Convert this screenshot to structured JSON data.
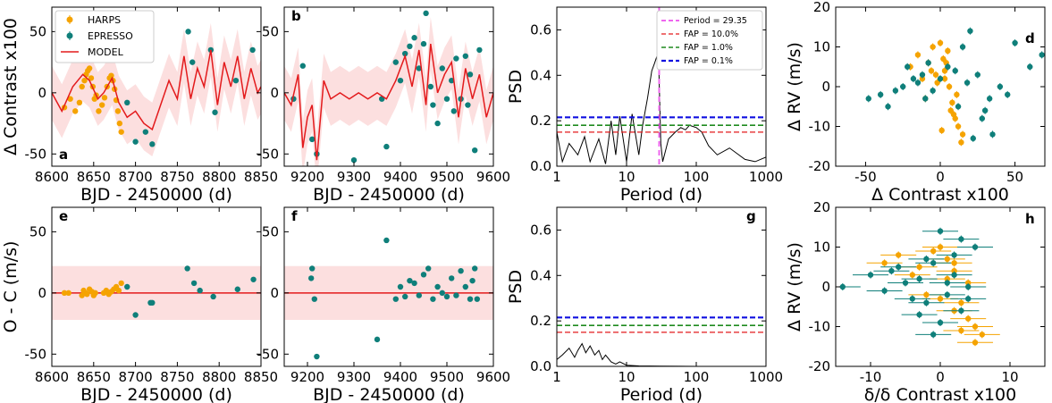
{
  "colors": {
    "harps": "#f5a300",
    "espresso": "#0f7f7a",
    "model": "#e31a1c",
    "band": "#fcd9d9",
    "period_line": "#ee66ee",
    "fap10": "#e31a1c",
    "fap1": "#1f8a1f",
    "fap01": "#1010e0"
  },
  "chart_data": [
    {
      "panel": "a",
      "type": "scatter",
      "xlabel": "BJD - 2450000 (d)",
      "ylabel": "Δ Contrast x100",
      "xlim": [
        8600,
        8850
      ],
      "ylim": [
        -60,
        70
      ],
      "xticks": [
        8600,
        8650,
        8700,
        8750,
        8800,
        8850
      ],
      "yticks": [
        -50,
        0,
        50
      ],
      "legend": {
        "placement": "top-left",
        "entries": [
          "HARPS",
          "EPRESSO",
          "MODEL"
        ]
      },
      "series": [
        {
          "name": "HARPS",
          "x": [
            8615,
            8622,
            8628,
            8633,
            8636,
            8639,
            8641,
            8643,
            8645,
            8647,
            8649,
            8651,
            8653,
            8656,
            8660,
            8663,
            8666,
            8669,
            8671,
            8673,
            8675,
            8677,
            8679,
            8681,
            8683
          ],
          "y": [
            -12,
            -5,
            -15,
            -8,
            5,
            10,
            15,
            18,
            20,
            12,
            5,
            -5,
            -2,
            -15,
            -10,
            -4,
            5,
            12,
            14,
            10,
            3,
            -6,
            -15,
            -25,
            -32
          ]
        },
        {
          "name": "EPRESSO",
          "x": [
            8690,
            8700,
            8712,
            8720,
            8763,
            8768,
            8790,
            8795,
            8820,
            8840
          ],
          "y": [
            -8,
            -40,
            -32,
            -42,
            50,
            25,
            35,
            -16,
            10,
            35
          ]
        },
        {
          "name": "MODEL",
          "x": [
            8600,
            8612,
            8625,
            8637,
            8645,
            8655,
            8662,
            8672,
            8680,
            8690,
            8700,
            8710,
            8720,
            8730,
            8740,
            8750,
            8758,
            8766,
            8774,
            8782,
            8790,
            8798,
            8806,
            8814,
            8822,
            8830,
            8838,
            8846,
            8850
          ],
          "y": [
            0,
            -15,
            5,
            15,
            10,
            -5,
            0,
            12,
            -8,
            -20,
            -15,
            -25,
            -30,
            -10,
            10,
            -5,
            30,
            -5,
            20,
            5,
            35,
            -10,
            25,
            5,
            30,
            -5,
            20,
            0,
            5
          ]
        }
      ]
    },
    {
      "panel": "b",
      "type": "scatter",
      "xlabel": "BJD - 2450000 (d)",
      "ylabel": "",
      "xlim": [
        9150,
        9600
      ],
      "ylim": [
        -60,
        70
      ],
      "xticks": [
        9200,
        9300,
        9400,
        9500,
        9600
      ],
      "yticks": [
        -50,
        0,
        50
      ],
      "series": [
        {
          "name": "EPRESSO",
          "x": [
            9170,
            9190,
            9210,
            9220,
            9300,
            9360,
            9370,
            9390,
            9400,
            9410,
            9420,
            9430,
            9440,
            9450,
            9455,
            9460,
            9465,
            9470,
            9480,
            9490,
            9500,
            9510,
            9515,
            9520,
            9530,
            9540,
            9545,
            9550,
            9560,
            9570
          ],
          "y": [
            -5,
            22,
            -38,
            -50,
            -55,
            -5,
            -44,
            25,
            10,
            32,
            38,
            45,
            20,
            40,
            65,
            75,
            5,
            -10,
            -25,
            20,
            -5,
            10,
            -15,
            28,
            -5,
            30,
            -10,
            15,
            -47,
            35
          ]
        },
        {
          "name": "MODEL",
          "x": [
            9150,
            9165,
            9180,
            9190,
            9200,
            9210,
            9220,
            9235,
            9250,
            9270,
            9290,
            9310,
            9330,
            9350,
            9370,
            9390,
            9410,
            9425,
            9440,
            9455,
            9465,
            9480,
            9495,
            9510,
            9525,
            9540,
            9555,
            9570,
            9585,
            9600
          ],
          "y": [
            0,
            -10,
            15,
            -45,
            -20,
            -10,
            -55,
            10,
            -5,
            0,
            -5,
            0,
            -5,
            0,
            -5,
            10,
            30,
            5,
            35,
            -10,
            40,
            0,
            15,
            25,
            -20,
            20,
            -5,
            15,
            -20,
            0
          ]
        }
      ]
    },
    {
      "panel": "c",
      "type": "line",
      "xlabel": "Period (d)",
      "ylabel": "PSD",
      "xscale": "log",
      "xlim": [
        1,
        1000
      ],
      "ylim": [
        0,
        0.7
      ],
      "xticks": [
        1,
        10,
        100,
        1000
      ],
      "yticks": [
        0.0,
        0.2,
        0.4,
        0.6
      ],
      "legend": {
        "placement": "top-right",
        "entries": [
          "Period = 29.35",
          "FAP = 10.0%",
          "FAP =  1.0%",
          "FAP =  0.1%"
        ]
      },
      "period_marker": 29.35,
      "fap_levels": [
        {
          "label": "FAP = 10.0%",
          "value": 0.15
        },
        {
          "label": "FAP =  1.0%",
          "value": 0.18
        },
        {
          "label": "FAP =  0.1%",
          "value": 0.215
        }
      ],
      "x": [
        1,
        1.2,
        1.5,
        2,
        2.5,
        3,
        4,
        5,
        6,
        7,
        8,
        10,
        12,
        15,
        17,
        20,
        23,
        25,
        27,
        29,
        31,
        33,
        35,
        40,
        50,
        60,
        70,
        80,
        100,
        120,
        150,
        200,
        300,
        500,
        700,
        1000
      ],
      "y": [
        0.15,
        0.02,
        0.1,
        0.05,
        0.13,
        0.02,
        0.12,
        0.01,
        0.2,
        0.05,
        0.22,
        0.02,
        0.23,
        0.05,
        0.18,
        0.3,
        0.42,
        0.45,
        0.48,
        0.44,
        0.1,
        0.02,
        0.05,
        0.12,
        0.15,
        0.17,
        0.16,
        0.18,
        0.17,
        0.15,
        0.09,
        0.05,
        0.08,
        0.03,
        0.02,
        0.04
      ]
    },
    {
      "panel": "d",
      "type": "scatter",
      "xlabel": "Δ Contrast x100",
      "ylabel": "Δ RV (m/s)",
      "xlim": [
        -70,
        70
      ],
      "ylim": [
        -20,
        20
      ],
      "xticks": [
        -50,
        0,
        50
      ],
      "yticks": [
        -20,
        -10,
        0,
        10,
        20
      ],
      "series": [
        {
          "name": "HARPS",
          "x": [
            -20,
            -15,
            -12,
            -10,
            -8,
            -5,
            -3,
            0,
            2,
            3,
            5,
            6,
            8,
            10,
            12,
            15,
            -2,
            4,
            7,
            1,
            -6,
            9,
            11,
            14,
            3
          ],
          "y": [
            5,
            8,
            2,
            -3,
            6,
            10,
            3,
            11,
            7,
            4,
            9,
            0,
            -4,
            -8,
            -10,
            -12,
            1,
            6,
            -6,
            -11,
            4,
            -7,
            -2,
            -14,
            2
          ]
        },
        {
          "name": "EPRESSO",
          "x": [
            -48,
            -40,
            -35,
            -30,
            -25,
            -22,
            -18,
            -15,
            -12,
            -10,
            -5,
            0,
            5,
            10,
            15,
            20,
            25,
            30,
            35,
            40,
            45,
            50,
            60,
            68,
            22,
            28,
            -8,
            12,
            18,
            33
          ],
          "y": [
            -3,
            -2,
            -5,
            -1,
            0,
            5,
            2,
            1,
            3,
            -3,
            -1,
            2,
            5,
            4,
            10,
            14,
            3,
            -6,
            -12,
            0,
            -2,
            11,
            5,
            8,
            -13,
            -8,
            6,
            -5,
            1,
            -3
          ]
        }
      ]
    },
    {
      "panel": "e",
      "type": "scatter",
      "xlabel": "BJD - 2450000 (d)",
      "ylabel": "O - C (m/s)",
      "xlim": [
        8600,
        8850
      ],
      "ylim": [
        -60,
        70
      ],
      "xticks": [
        8600,
        8650,
        8700,
        8750,
        8800,
        8850
      ],
      "yticks": [
        -50,
        0,
        50
      ],
      "series": [
        {
          "name": "HARPS",
          "x": [
            8615,
            8620,
            8636,
            8638,
            8640,
            8642,
            8645,
            8648,
            8650,
            8652,
            8662,
            8665,
            8668,
            8671,
            8674,
            8677,
            8680,
            8683
          ],
          "y": [
            0,
            0,
            -2,
            2,
            0,
            -1,
            3,
            1,
            -2,
            0,
            0,
            2,
            -1,
            1,
            3,
            5,
            2,
            8
          ]
        },
        {
          "name": "EPRESSO",
          "x": [
            8690,
            8700,
            8718,
            8720,
            8762,
            8770,
            8777,
            8793,
            8822,
            8841
          ],
          "y": [
            5,
            -18,
            -8,
            -8,
            20,
            8,
            2,
            -3,
            3,
            11
          ]
        }
      ]
    },
    {
      "panel": "f",
      "type": "scatter",
      "xlabel": "BJD - 2450000 (d)",
      "ylabel": "",
      "xlim": [
        9150,
        9600
      ],
      "ylim": [
        -60,
        70
      ],
      "xticks": [
        9200,
        9300,
        9400,
        9500,
        9600
      ],
      "yticks": [
        -50,
        0,
        50
      ],
      "series": [
        {
          "name": "EPRESSO",
          "x": [
            9208,
            9210,
            9215,
            9220,
            9350,
            9370,
            9390,
            9400,
            9410,
            9420,
            9430,
            9440,
            9450,
            9460,
            9470,
            9480,
            9490,
            9500,
            9510,
            9520,
            9530,
            9540,
            9550,
            9555,
            9560,
            9565
          ],
          "y": [
            12,
            20,
            -5,
            -52,
            -38,
            43,
            -5,
            5,
            -3,
            10,
            8,
            -2,
            15,
            20,
            -5,
            5,
            0,
            -3,
            12,
            -2,
            18,
            5,
            -5,
            10,
            20,
            -5
          ]
        }
      ]
    },
    {
      "panel": "g",
      "type": "line",
      "xlabel": "Period (d)",
      "ylabel": "PSD",
      "xscale": "log",
      "xlim": [
        1,
        1000
      ],
      "ylim": [
        0,
        0.7
      ],
      "xticks": [
        1,
        10,
        100,
        1000
      ],
      "yticks": [
        0.0,
        0.2,
        0.4,
        0.6
      ],
      "fap_levels": [
        {
          "label": "FAP = 10.0%",
          "value": 0.15
        },
        {
          "label": "FAP =  1.0%",
          "value": 0.18
        },
        {
          "label": "FAP =  0.1%",
          "value": 0.215
        }
      ],
      "x": [
        1,
        1.2,
        1.5,
        1.8,
        2,
        2.3,
        2.6,
        3,
        3.5,
        4,
        4.5,
        5,
        6,
        7,
        8,
        10,
        15,
        30,
        100,
        1000
      ],
      "y": [
        0.03,
        0.05,
        0.08,
        0.04,
        0.07,
        0.1,
        0.06,
        0.09,
        0.05,
        0.07,
        0.03,
        0.05,
        0.02,
        0.01,
        0.02,
        0.005,
        0.002,
        0.001,
        0.0,
        0.0
      ]
    },
    {
      "panel": "h",
      "type": "scatter",
      "xlabel": "δ/δ Contrast x100",
      "ylabel": "Δ RV (m/s)",
      "xlim": [
        -15,
        15
      ],
      "ylim": [
        -20,
        20
      ],
      "xticks": [
        -10,
        0,
        10
      ],
      "yticks": [
        -20,
        -10,
        0,
        10,
        20
      ],
      "series": [
        {
          "name": "HARPS",
          "x": [
            -8,
            -6,
            -4,
            -2,
            0,
            1,
            2,
            3,
            4,
            5,
            6,
            -3,
            -1,
            2,
            3,
            4,
            5,
            1,
            0,
            2
          ],
          "y": [
            6,
            8,
            3,
            -2,
            10,
            7,
            4,
            -4,
            -8,
            -10,
            -12,
            5,
            9,
            -6,
            -11,
            1,
            -14,
            2,
            -3,
            6
          ]
        },
        {
          "name": "EPRESSO",
          "x": [
            -14,
            -10,
            -8,
            -6,
            -5,
            -4,
            -3,
            -2,
            -1,
            0,
            1,
            2,
            3,
            4,
            5,
            -7,
            -3,
            0,
            2,
            3,
            -1,
            1,
            4,
            -2
          ],
          "y": [
            0,
            3,
            -1,
            5,
            1,
            -3,
            2,
            -4,
            6,
            14,
            -2,
            3,
            -6,
            0,
            10,
            4,
            -7,
            -9,
            8,
            12,
            -12,
            1,
            -3,
            7
          ]
        }
      ]
    }
  ]
}
